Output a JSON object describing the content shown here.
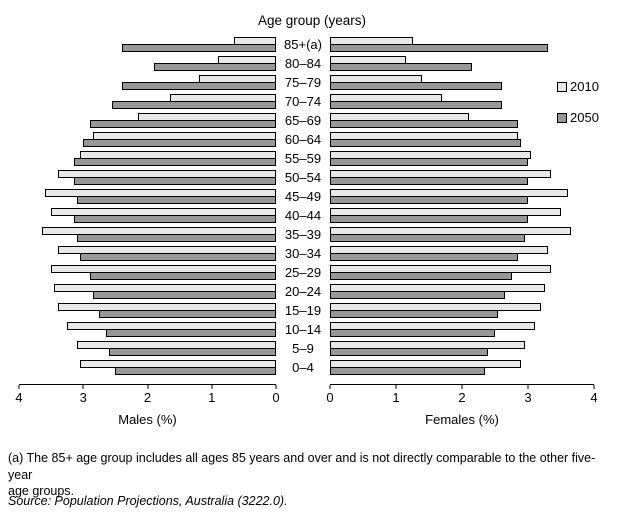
{
  "title": "Age group (years)",
  "legend": {
    "items": [
      {
        "label": "2010",
        "color": "#e8e8e8"
      },
      {
        "label": "2050",
        "color": "#979797"
      }
    ]
  },
  "axes": {
    "male_title": "Males (%)",
    "female_title": "Females (%)",
    "male_ticks": [
      "4",
      "3",
      "2",
      "1",
      "0"
    ],
    "female_ticks": [
      "0",
      "1",
      "2",
      "3",
      "4"
    ]
  },
  "footnote": "(a) The 85+ age group includes all ages 85 years and over and is not directly comparable to the other five-year\nage groups.",
  "source": "Source: Population Projections, Australia (3222.0).",
  "colors": {
    "bar_2010_fill": "#e8e8e8",
    "bar_2050_fill": "#979797",
    "bar_border": "#000000"
  },
  "chart_data": {
    "type": "bar",
    "subtype": "population_pyramid",
    "orientation": "horizontal",
    "title": "Age group (years)",
    "xlabel_left": "Males (%)",
    "xlabel_right": "Females (%)",
    "xlim": [
      0,
      4
    ],
    "x_ticks_left": [
      4,
      3,
      2,
      1,
      0
    ],
    "x_ticks_right": [
      0,
      1,
      2,
      3,
      4
    ],
    "grid": false,
    "legend_position": "right",
    "categories": [
      "85+(a)",
      "80–84",
      "75–79",
      "70–74",
      "65–69",
      "60–64",
      "55–59",
      "50–54",
      "45–49",
      "40–44",
      "35–39",
      "30–34",
      "25–29",
      "20–24",
      "15–19",
      "10–14",
      "5–9",
      "0–4"
    ],
    "series": [
      {
        "name": "Males 2010",
        "side": "left",
        "color": "#e8e8e8",
        "values": [
          0.65,
          0.9,
          1.2,
          1.65,
          2.15,
          2.85,
          3.05,
          3.4,
          3.6,
          3.5,
          3.65,
          3.4,
          3.5,
          3.45,
          3.4,
          3.25,
          3.1,
          3.05
        ]
      },
      {
        "name": "Males 2050",
        "side": "left",
        "color": "#979797",
        "values": [
          2.4,
          1.9,
          2.4,
          2.55,
          2.9,
          3.0,
          3.15,
          3.15,
          3.1,
          3.15,
          3.1,
          3.05,
          2.9,
          2.85,
          2.75,
          2.65,
          2.6,
          2.5
        ]
      },
      {
        "name": "Females 2010",
        "side": "right",
        "color": "#e8e8e8",
        "values": [
          1.25,
          1.15,
          1.4,
          1.7,
          2.1,
          2.85,
          3.05,
          3.35,
          3.6,
          3.5,
          3.65,
          3.3,
          3.35,
          3.25,
          3.2,
          3.1,
          2.95,
          2.9
        ]
      },
      {
        "name": "Females 2050",
        "side": "right",
        "color": "#979797",
        "values": [
          3.3,
          2.15,
          2.6,
          2.6,
          2.85,
          2.9,
          3.0,
          3.0,
          3.0,
          3.0,
          2.95,
          2.85,
          2.75,
          2.65,
          2.55,
          2.5,
          2.4,
          2.35
        ]
      }
    ]
  }
}
